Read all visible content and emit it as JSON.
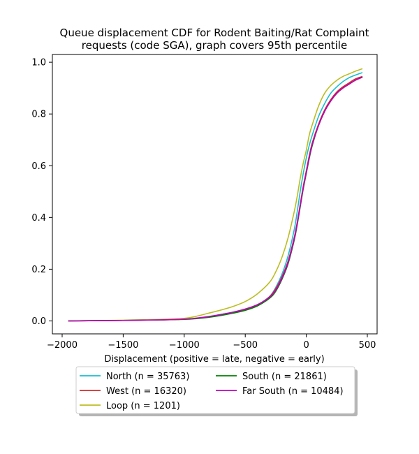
{
  "chart_data": {
    "type": "line",
    "title_lines": [
      "Queue displacement CDF for Rodent Baiting/Rat Complaint",
      "requests (code SGA), graph covers 95th percentile"
    ],
    "xlabel": "Displacement (positive = late, negative = early)",
    "ylabel": "",
    "xlim": [
      -2080,
      580
    ],
    "ylim": [
      -0.05,
      1.03
    ],
    "xticks": [
      -2000,
      -1500,
      -1000,
      -500,
      0,
      500
    ],
    "xtick_labels": [
      "−2000",
      "−1500",
      "−1000",
      "−500",
      "0",
      "500"
    ],
    "yticks": [
      0.0,
      0.2,
      0.4,
      0.6,
      0.8,
      1.0
    ],
    "ytick_labels": [
      "0.0",
      "0.2",
      "0.4",
      "0.6",
      "0.8",
      "1.0"
    ],
    "grid": false,
    "legend_position": "below plot, two columns",
    "series": [
      {
        "name": "North (n = 35763)",
        "color": "#17becf",
        "points": [
          [
            -1950,
            0.0
          ],
          [
            -1500,
            0.002
          ],
          [
            -1200,
            0.004
          ],
          [
            -1000,
            0.007
          ],
          [
            -900,
            0.01
          ],
          [
            -800,
            0.016
          ],
          [
            -700,
            0.025
          ],
          [
            -600,
            0.034
          ],
          [
            -500,
            0.045
          ],
          [
            -400,
            0.062
          ],
          [
            -300,
            0.095
          ],
          [
            -250,
            0.13
          ],
          [
            -200,
            0.18
          ],
          [
            -150,
            0.25
          ],
          [
            -100,
            0.35
          ],
          [
            -75,
            0.42
          ],
          [
            -50,
            0.5
          ],
          [
            -25,
            0.57
          ],
          [
            0,
            0.63
          ],
          [
            25,
            0.68
          ],
          [
            50,
            0.72
          ],
          [
            100,
            0.79
          ],
          [
            150,
            0.84
          ],
          [
            200,
            0.88
          ],
          [
            250,
            0.905
          ],
          [
            300,
            0.925
          ],
          [
            350,
            0.94
          ],
          [
            400,
            0.95
          ],
          [
            460,
            0.96
          ]
        ]
      },
      {
        "name": "West (n = 16320)",
        "color": "#d62728",
        "points": [
          [
            -1950,
            0.0
          ],
          [
            -1500,
            0.002
          ],
          [
            -1200,
            0.004
          ],
          [
            -1000,
            0.007
          ],
          [
            -900,
            0.01
          ],
          [
            -800,
            0.016
          ],
          [
            -700,
            0.024
          ],
          [
            -600,
            0.033
          ],
          [
            -500,
            0.045
          ],
          [
            -400,
            0.062
          ],
          [
            -300,
            0.094
          ],
          [
            -250,
            0.125
          ],
          [
            -200,
            0.17
          ],
          [
            -150,
            0.23
          ],
          [
            -100,
            0.32
          ],
          [
            -75,
            0.38
          ],
          [
            -50,
            0.45
          ],
          [
            -25,
            0.52
          ],
          [
            0,
            0.58
          ],
          [
            25,
            0.64
          ],
          [
            50,
            0.69
          ],
          [
            100,
            0.76
          ],
          [
            150,
            0.815
          ],
          [
            200,
            0.855
          ],
          [
            250,
            0.885
          ],
          [
            300,
            0.905
          ],
          [
            350,
            0.92
          ],
          [
            400,
            0.935
          ],
          [
            460,
            0.945
          ]
        ]
      },
      {
        "name": "Loop (n = 1201)",
        "color": "#bcbd22",
        "points": [
          [
            -1950,
            0.0
          ],
          [
            -1500,
            0.003
          ],
          [
            -1200,
            0.006
          ],
          [
            -1000,
            0.01
          ],
          [
            -900,
            0.018
          ],
          [
            -800,
            0.03
          ],
          [
            -700,
            0.042
          ],
          [
            -600,
            0.056
          ],
          [
            -500,
            0.075
          ],
          [
            -400,
            0.105
          ],
          [
            -300,
            0.15
          ],
          [
            -250,
            0.19
          ],
          [
            -200,
            0.245
          ],
          [
            -150,
            0.32
          ],
          [
            -100,
            0.42
          ],
          [
            -75,
            0.48
          ],
          [
            -50,
            0.55
          ],
          [
            -25,
            0.61
          ],
          [
            0,
            0.66
          ],
          [
            25,
            0.72
          ],
          [
            50,
            0.76
          ],
          [
            100,
            0.83
          ],
          [
            150,
            0.88
          ],
          [
            200,
            0.91
          ],
          [
            250,
            0.93
          ],
          [
            300,
            0.945
          ],
          [
            350,
            0.955
          ],
          [
            400,
            0.965
          ],
          [
            460,
            0.975
          ]
        ]
      },
      {
        "name": "South (n = 21861)",
        "color": "#008000",
        "points": [
          [
            -1950,
            0.0
          ],
          [
            -1500,
            0.002
          ],
          [
            -1200,
            0.004
          ],
          [
            -1000,
            0.006
          ],
          [
            -900,
            0.009
          ],
          [
            -800,
            0.014
          ],
          [
            -700,
            0.021
          ],
          [
            -600,
            0.03
          ],
          [
            -500,
            0.041
          ],
          [
            -400,
            0.058
          ],
          [
            -300,
            0.088
          ],
          [
            -250,
            0.115
          ],
          [
            -200,
            0.16
          ],
          [
            -150,
            0.22
          ],
          [
            -100,
            0.31
          ],
          [
            -75,
            0.37
          ],
          [
            -50,
            0.44
          ],
          [
            -25,
            0.51
          ],
          [
            0,
            0.57
          ],
          [
            25,
            0.63
          ],
          [
            50,
            0.68
          ],
          [
            100,
            0.755
          ],
          [
            150,
            0.81
          ],
          [
            200,
            0.85
          ],
          [
            250,
            0.88
          ],
          [
            300,
            0.9
          ],
          [
            350,
            0.915
          ],
          [
            400,
            0.93
          ],
          [
            460,
            0.943
          ]
        ]
      },
      {
        "name": "Far South (n = 10484)",
        "color": "#bf00bf",
        "points": [
          [
            -1950,
            0.0
          ],
          [
            -1500,
            0.002
          ],
          [
            -1200,
            0.004
          ],
          [
            -1000,
            0.007
          ],
          [
            -900,
            0.011
          ],
          [
            -800,
            0.017
          ],
          [
            -700,
            0.025
          ],
          [
            -600,
            0.034
          ],
          [
            -500,
            0.046
          ],
          [
            -400,
            0.063
          ],
          [
            -300,
            0.092
          ],
          [
            -250,
            0.12
          ],
          [
            -200,
            0.165
          ],
          [
            -150,
            0.225
          ],
          [
            -100,
            0.315
          ],
          [
            -75,
            0.375
          ],
          [
            -50,
            0.445
          ],
          [
            -25,
            0.515
          ],
          [
            0,
            0.575
          ],
          [
            25,
            0.635
          ],
          [
            50,
            0.685
          ],
          [
            100,
            0.755
          ],
          [
            150,
            0.81
          ],
          [
            200,
            0.85
          ],
          [
            250,
            0.88
          ],
          [
            300,
            0.9
          ],
          [
            350,
            0.915
          ],
          [
            400,
            0.93
          ],
          [
            460,
            0.942
          ]
        ]
      }
    ]
  }
}
